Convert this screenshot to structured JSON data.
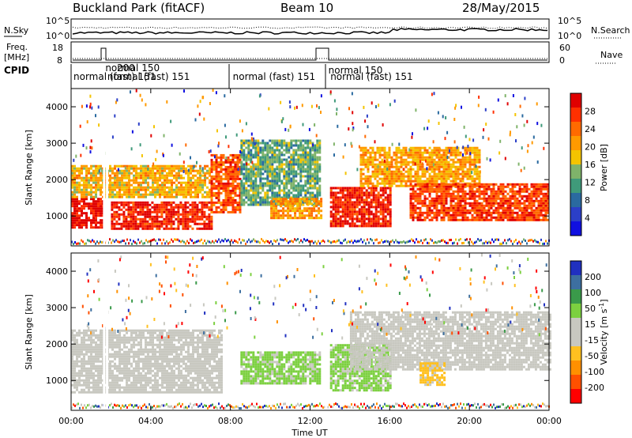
{
  "header": {
    "station": "Buckland Park (fitACF)",
    "beam": "Beam 10",
    "date": "28/May/2015"
  },
  "strip_labels": {
    "nsky": "N.Sky",
    "nsky_ticks": [
      "10^5",
      "10^0"
    ],
    "nsearch": "N.Search",
    "nsearch_ticks": [
      "10^5",
      "10^0"
    ],
    "freq_line1": "Freq.",
    "freq_line2": "[MHz]",
    "freq_ticks": [
      "18",
      "8"
    ],
    "nave": "Nave",
    "nave_ticks": [
      "60",
      "0"
    ],
    "cpid": "CPID"
  },
  "cpid_segments": [
    {
      "label": "normal (fast) 151",
      "start": 0.0
    },
    {
      "label": "normal 150",
      "start": 1.6
    },
    {
      "label": "normal (fast) 151",
      "start": 1.7
    },
    {
      "label": "normal (fast) 151",
      "start": 8.0
    },
    {
      "label": "normal 150",
      "start": 12.8
    },
    {
      "label": "normal (fast) 151",
      "start": 12.9
    }
  ],
  "cpid_overlap_text": "200",
  "x_axis": {
    "title": "Time UT",
    "ticks": [
      "00:00",
      "04:00",
      "08:00",
      "12:00",
      "16:00",
      "20:00",
      "00:00"
    ],
    "range_hours": [
      0,
      24
    ]
  },
  "panels": [
    {
      "id": "power",
      "ylabel": "Slant Range [km]",
      "yticks": [
        "4000",
        "3000",
        "2000",
        "1000"
      ],
      "colorbar_label": "Power [dB]",
      "colorbar_ticks": [
        "28",
        "24",
        "20",
        "16",
        "12",
        "8",
        "4"
      ],
      "colorbar_colors": [
        "#e00000",
        "#ff3000",
        "#ff6a00",
        "#ff9a00",
        "#f4c400",
        "#7fb36a",
        "#3f9a7a",
        "#2a6aa0",
        "#2b3fc8",
        "#1010e0"
      ]
    },
    {
      "id": "velocity",
      "ylabel": "Slant Range [km]",
      "yticks": [
        "4000",
        "3000",
        "2000",
        "1000"
      ],
      "colorbar_label": "Velocity [m s^-1]",
      "colorbar_ticks": [
        "200",
        "100",
        "50",
        "15",
        "-15",
        "-50",
        "-100",
        "-200"
      ],
      "colorbar_colors": [
        "#2030c0",
        "#3d6fa0",
        "#3a9a4a",
        "#7cd040",
        "#c8c8c0",
        "#c8c8c0",
        "#ffc020",
        "#ff9000",
        "#ff5000",
        "#ff0000"
      ]
    }
  ],
  "chart_data": {
    "type": "heatmap",
    "title": "Buckland Park (fitACF) Beam 10 28/May/2015",
    "xlabel": "Time UT",
    "ylabel": "Slant Range [km]",
    "xlim": [
      0,
      24
    ],
    "ylim": [
      180,
      4500
    ],
    "power_db_range": [
      0,
      30
    ],
    "velocity_range": [
      -250,
      250
    ],
    "power_regions": [
      {
        "t": [
          0.0,
          1.6
        ],
        "range_km": [
          700,
          1500
        ],
        "power_db": 28
      },
      {
        "t": [
          0.0,
          7.0
        ],
        "range_km": [
          1500,
          2400
        ],
        "power_db": 18
      },
      {
        "t": [
          2.0,
          7.0
        ],
        "range_km": [
          650,
          1400
        ],
        "power_db": 27
      },
      {
        "t": [
          7.0,
          8.5
        ],
        "range_km": [
          1100,
          2700
        ],
        "power_db": 24
      },
      {
        "t": [
          8.5,
          12.5
        ],
        "range_km": [
          1300,
          3100
        ],
        "power_db": 12
      },
      {
        "t": [
          10.0,
          12.5
        ],
        "range_km": [
          950,
          1500
        ],
        "power_db": 20
      },
      {
        "t": [
          13.0,
          16.0
        ],
        "range_km": [
          750,
          1800
        ],
        "power_db": 27
      },
      {
        "t": [
          14.5,
          20.5
        ],
        "range_km": [
          1800,
          2900
        ],
        "power_db": 19
      },
      {
        "t": [
          17.0,
          24.0
        ],
        "range_km": [
          900,
          1900
        ],
        "power_db": 25
      }
    ],
    "velocity_regions": [
      {
        "t": [
          0.0,
          7.5
        ],
        "range_km": [
          700,
          2400
        ],
        "velocity": 0
      },
      {
        "t": [
          8.5,
          12.5
        ],
        "range_km": [
          950,
          1800
        ],
        "velocity": 60
      },
      {
        "t": [
          13.0,
          16.0
        ],
        "range_km": [
          750,
          2000
        ],
        "velocity": 60
      },
      {
        "t": [
          14.0,
          24.0
        ],
        "range_km": [
          1300,
          2900
        ],
        "velocity": 0
      },
      {
        "t": [
          17.5,
          18.8
        ],
        "range_km": [
          900,
          1500
        ],
        "velocity": -60
      }
    ]
  }
}
